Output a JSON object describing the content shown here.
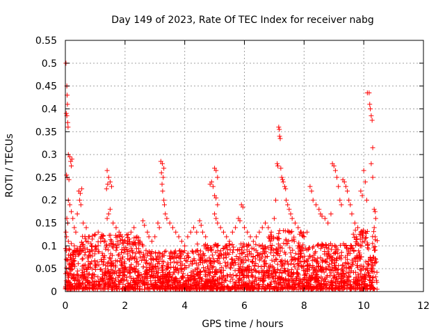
{
  "chart_data": {
    "type": "scatter",
    "title": "Day 149 of 2023, Rate Of TEC Index for receiver nabg",
    "xlabel": "GPS time / hours",
    "ylabel": "ROTI / TECUs",
    "xlim": [
      0,
      12
    ],
    "ylim": [
      0,
      0.55
    ],
    "x_ticks": [
      "0",
      "2",
      "4",
      "6",
      "8",
      "10",
      "12"
    ],
    "x_tick_values": [
      0,
      2,
      4,
      6,
      8,
      10,
      12
    ],
    "y_ticks": [
      "0",
      "0.05",
      "0.1",
      "0.15",
      "0.2",
      "0.25",
      "0.3",
      "0.35",
      "0.4",
      "0.45",
      "0.5",
      "0.55"
    ],
    "y_tick_values": [
      0,
      0.05,
      0.1,
      0.15,
      0.2,
      0.25,
      0.3,
      0.35,
      0.4,
      0.45,
      0.5,
      0.55
    ],
    "grid": true,
    "marker": "+",
    "color": "#ff0000",
    "series": [
      {
        "points": [
          [
            0.02,
            0.5
          ],
          [
            0.05,
            0.45
          ],
          [
            0.06,
            0.43
          ],
          [
            0.07,
            0.41
          ],
          [
            0.05,
            0.385
          ],
          [
            0.08,
            0.37
          ],
          [
            0.09,
            0.36
          ],
          [
            0.03,
            0.39
          ],
          [
            0.04,
            0.255
          ],
          [
            0.06,
            0.25
          ],
          [
            0.1,
            0.3
          ],
          [
            0.15,
            0.295
          ],
          [
            0.18,
            0.285
          ],
          [
            0.2,
            0.275
          ],
          [
            0.22,
            0.29
          ],
          [
            0.12,
            0.245
          ],
          [
            0.1,
            0.2
          ],
          [
            0.05,
            0.16
          ],
          [
            0.08,
            0.15
          ],
          [
            0.02,
            0.13
          ],
          [
            0.04,
            0.12
          ],
          [
            0.15,
            0.19
          ],
          [
            0.2,
            0.175
          ],
          [
            0.25,
            0.16
          ],
          [
            0.3,
            0.14
          ],
          [
            0.35,
            0.13
          ],
          [
            0.45,
            0.22
          ],
          [
            0.5,
            0.215
          ],
          [
            0.55,
            0.225
          ],
          [
            0.48,
            0.2
          ],
          [
            0.52,
            0.19
          ],
          [
            0.4,
            0.17
          ],
          [
            0.6,
            0.15
          ],
          [
            0.7,
            0.14
          ],
          [
            0.1,
            0.11
          ],
          [
            0.2,
            0.105
          ],
          [
            0.3,
            0.1
          ],
          [
            0.4,
            0.095
          ],
          [
            0.5,
            0.09
          ],
          [
            0.6,
            0.1
          ],
          [
            0.7,
            0.11
          ],
          [
            0.8,
            0.12
          ],
          [
            0.9,
            0.115
          ],
          [
            1.0,
            0.125
          ],
          [
            1.1,
            0.13
          ],
          [
            1.2,
            0.12
          ],
          [
            1.3,
            0.11
          ],
          [
            1.4,
            0.265
          ],
          [
            1.45,
            0.25
          ],
          [
            1.42,
            0.235
          ],
          [
            1.38,
            0.225
          ],
          [
            1.5,
            0.24
          ],
          [
            1.55,
            0.23
          ],
          [
            1.5,
            0.18
          ],
          [
            1.45,
            0.17
          ],
          [
            1.4,
            0.16
          ],
          [
            1.6,
            0.15
          ],
          [
            1.7,
            0.14
          ],
          [
            1.8,
            0.13
          ],
          [
            1.9,
            0.12
          ],
          [
            2.0,
            0.11
          ],
          [
            2.1,
            0.125
          ],
          [
            2.2,
            0.13
          ],
          [
            2.3,
            0.14
          ],
          [
            2.4,
            0.12
          ],
          [
            2.5,
            0.11
          ],
          [
            2.6,
            0.1
          ],
          [
            2.6,
            0.155
          ],
          [
            2.65,
            0.145
          ],
          [
            2.75,
            0.13
          ],
          [
            2.8,
            0.12
          ],
          [
            2.9,
            0.11
          ],
          [
            3.0,
            0.12
          ],
          [
            3.1,
            0.15
          ],
          [
            3.15,
            0.14
          ],
          [
            3.2,
            0.285
          ],
          [
            3.25,
            0.28
          ],
          [
            3.3,
            0.27
          ],
          [
            3.22,
            0.26
          ],
          [
            3.28,
            0.25
          ],
          [
            3.24,
            0.235
          ],
          [
            3.26,
            0.22
          ],
          [
            3.3,
            0.2
          ],
          [
            3.32,
            0.19
          ],
          [
            3.35,
            0.17
          ],
          [
            3.4,
            0.16
          ],
          [
            3.5,
            0.15
          ],
          [
            3.6,
            0.14
          ],
          [
            3.7,
            0.13
          ],
          [
            3.8,
            0.12
          ],
          [
            3.9,
            0.11
          ],
          [
            4.0,
            0.1
          ],
          [
            4.1,
            0.12
          ],
          [
            4.2,
            0.13
          ],
          [
            4.3,
            0.14
          ],
          [
            4.4,
            0.13
          ],
          [
            4.5,
            0.155
          ],
          [
            4.55,
            0.145
          ],
          [
            4.6,
            0.13
          ],
          [
            4.7,
            0.12
          ],
          [
            4.85,
            0.235
          ],
          [
            4.9,
            0.24
          ],
          [
            4.95,
            0.23
          ],
          [
            5.0,
            0.27
          ],
          [
            5.05,
            0.265
          ],
          [
            5.1,
            0.25
          ],
          [
            5.0,
            0.21
          ],
          [
            5.05,
            0.205
          ],
          [
            5.1,
            0.19
          ],
          [
            5.0,
            0.17
          ],
          [
            5.05,
            0.16
          ],
          [
            5.1,
            0.15
          ],
          [
            5.2,
            0.14
          ],
          [
            5.3,
            0.13
          ],
          [
            5.4,
            0.12
          ],
          [
            5.5,
            0.11
          ],
          [
            5.6,
            0.13
          ],
          [
            5.7,
            0.14
          ],
          [
            5.8,
            0.16
          ],
          [
            5.85,
            0.155
          ],
          [
            5.9,
            0.19
          ],
          [
            5.95,
            0.185
          ],
          [
            6.0,
            0.14
          ],
          [
            6.1,
            0.13
          ],
          [
            6.2,
            0.12
          ],
          [
            6.3,
            0.11
          ],
          [
            6.4,
            0.12
          ],
          [
            6.5,
            0.13
          ],
          [
            6.6,
            0.14
          ],
          [
            6.7,
            0.15
          ],
          [
            6.8,
            0.14
          ],
          [
            6.9,
            0.13
          ],
          [
            7.0,
            0.16
          ],
          [
            7.05,
            0.2
          ],
          [
            7.1,
            0.28
          ],
          [
            7.12,
            0.275
          ],
          [
            7.15,
            0.36
          ],
          [
            7.17,
            0.355
          ],
          [
            7.18,
            0.34
          ],
          [
            7.2,
            0.335
          ],
          [
            7.22,
            0.27
          ],
          [
            7.25,
            0.25
          ],
          [
            7.28,
            0.245
          ],
          [
            7.3,
            0.24
          ],
          [
            7.35,
            0.23
          ],
          [
            7.38,
            0.225
          ],
          [
            7.4,
            0.2
          ],
          [
            7.45,
            0.19
          ],
          [
            7.5,
            0.18
          ],
          [
            7.55,
            0.17
          ],
          [
            7.6,
            0.16
          ],
          [
            7.7,
            0.15
          ],
          [
            7.8,
            0.14
          ],
          [
            7.9,
            0.13
          ],
          [
            8.0,
            0.12
          ],
          [
            8.1,
            0.13
          ],
          [
            8.2,
            0.23
          ],
          [
            8.25,
            0.22
          ],
          [
            8.3,
            0.2
          ],
          [
            8.4,
            0.19
          ],
          [
            8.5,
            0.18
          ],
          [
            8.55,
            0.17
          ],
          [
            8.6,
            0.165
          ],
          [
            8.7,
            0.16
          ],
          [
            8.8,
            0.15
          ],
          [
            8.9,
            0.17
          ],
          [
            8.95,
            0.28
          ],
          [
            9.0,
            0.275
          ],
          [
            9.05,
            0.265
          ],
          [
            9.1,
            0.25
          ],
          [
            9.15,
            0.23
          ],
          [
            9.2,
            0.2
          ],
          [
            9.25,
            0.19
          ],
          [
            9.3,
            0.245
          ],
          [
            9.35,
            0.24
          ],
          [
            9.4,
            0.23
          ],
          [
            9.45,
            0.22
          ],
          [
            9.5,
            0.2
          ],
          [
            9.55,
            0.19
          ],
          [
            9.6,
            0.17
          ],
          [
            9.7,
            0.15
          ],
          [
            9.8,
            0.14
          ],
          [
            9.9,
            0.22
          ],
          [
            9.95,
            0.21
          ],
          [
            10.0,
            0.265
          ],
          [
            10.05,
            0.24
          ],
          [
            10.1,
            0.2
          ],
          [
            10.12,
            0.435
          ],
          [
            10.18,
            0.435
          ],
          [
            10.2,
            0.41
          ],
          [
            10.22,
            0.4
          ],
          [
            10.25,
            0.385
          ],
          [
            10.28,
            0.375
          ],
          [
            10.3,
            0.315
          ],
          [
            10.25,
            0.28
          ],
          [
            10.3,
            0.25
          ],
          [
            10.35,
            0.18
          ],
          [
            10.38,
            0.175
          ],
          [
            10.4,
            0.16
          ],
          [
            10.35,
            0.14
          ],
          [
            10.38,
            0.12
          ],
          [
            10.4,
            0.07
          ],
          [
            10.42,
            0.065
          ]
        ]
      }
    ]
  }
}
